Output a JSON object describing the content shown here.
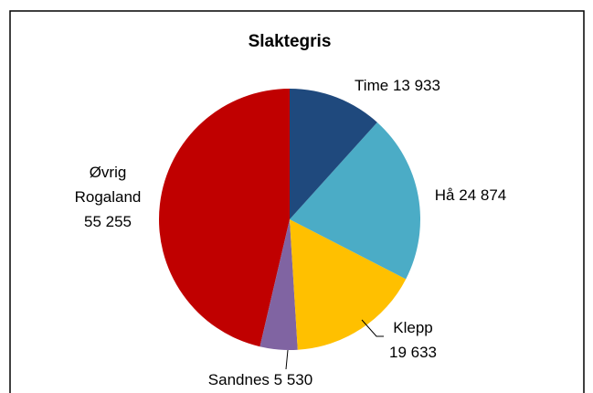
{
  "chart_data": {
    "type": "pie",
    "title": "Slaktegris",
    "categories": [
      "Time",
      "Hå",
      "Klepp",
      "Sandnes",
      "Øvrig Rogaland"
    ],
    "values": [
      13933,
      24874,
      19633,
      5530,
      55255
    ],
    "value_labels": [
      "13 933",
      "24 874",
      "19 633",
      "5 530",
      "55 255"
    ],
    "colors": [
      "#1f497d",
      "#4bacc6",
      "#ffc000",
      "#8064a2",
      "#c00000"
    ]
  }
}
